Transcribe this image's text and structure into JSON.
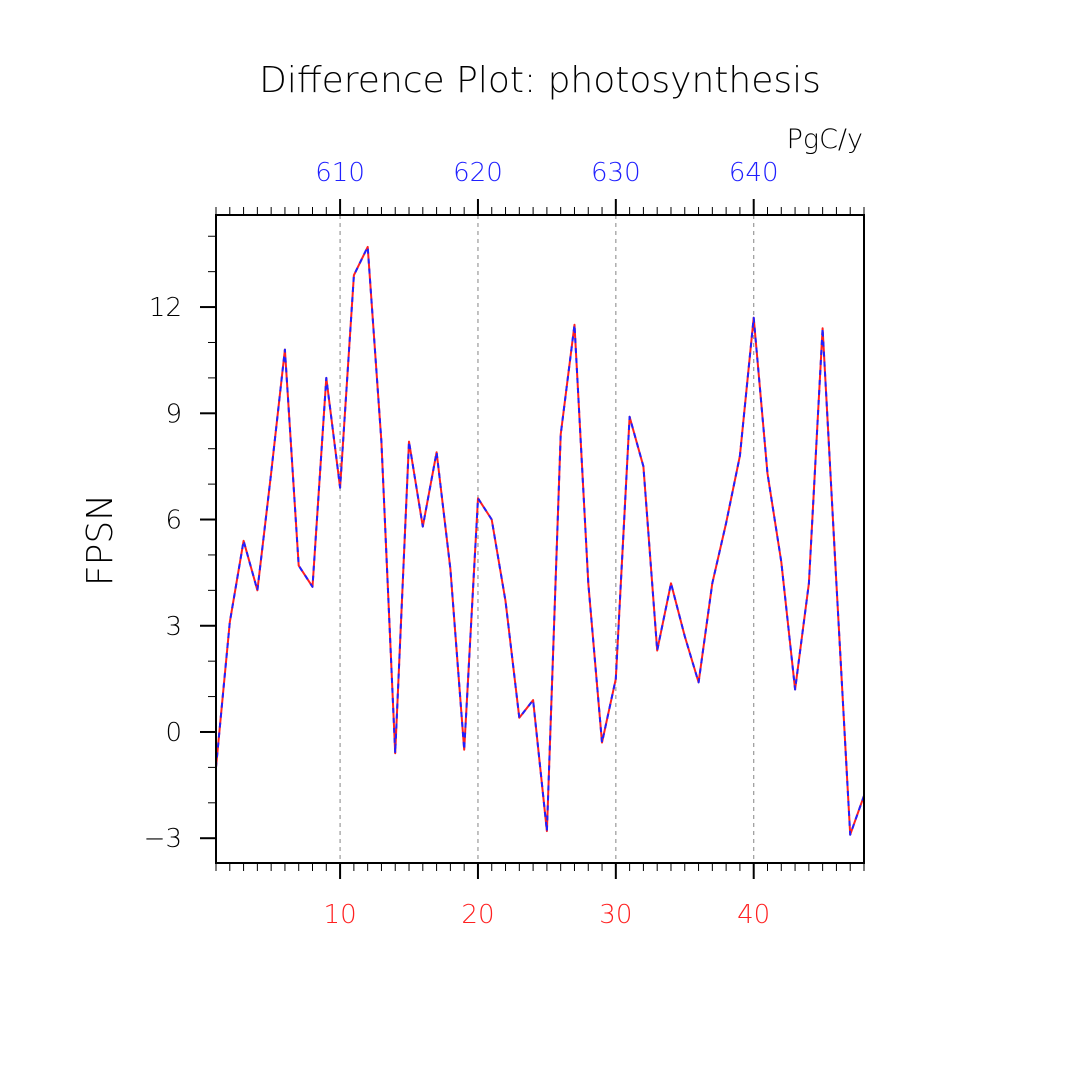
{
  "chart_data": {
    "type": "line",
    "title": "Difference Plot: photosynthesis",
    "ylabel": "FPSN",
    "units_label": "PgC/y",
    "ylim": [
      -3.7,
      14.6
    ],
    "xlim": [
      1,
      48
    ],
    "yticks": [
      -3,
      0,
      3,
      6,
      9,
      12
    ],
    "ytick_labels": [
      "−3",
      "0",
      "3",
      "6",
      "9",
      "12"
    ],
    "xticks_bottom": [
      10,
      20,
      30,
      40
    ],
    "xtick_bottom_labels": [
      "10",
      "20",
      "30",
      "40"
    ],
    "xticks_top": [
      10,
      20,
      30,
      40
    ],
    "xtick_top_labels": [
      "610",
      "620",
      "630",
      "640"
    ],
    "bottom_axis_color": "#ff2020",
    "top_axis_color": "#2020ff",
    "grid": "vertical dashed at major x ticks",
    "series": [
      {
        "color": "#ff2020",
        "style": "solid",
        "x": [
          1,
          2,
          3,
          4,
          5,
          6,
          7,
          8,
          9,
          10,
          11,
          12,
          13,
          14,
          15,
          16,
          17,
          18,
          19,
          20,
          21,
          22,
          23,
          24,
          25,
          26,
          27,
          28,
          29,
          30,
          31,
          32,
          33,
          34,
          35,
          36,
          37,
          38,
          39,
          40,
          41,
          42,
          43,
          44,
          45,
          46,
          47,
          48
        ],
        "values": [
          -1.0,
          3.1,
          5.4,
          4.0,
          7.3,
          10.8,
          4.7,
          4.1,
          10.0,
          6.9,
          12.9,
          13.7,
          8.2,
          -0.6,
          8.2,
          5.8,
          7.9,
          4.6,
          -0.5,
          6.6,
          6.0,
          3.7,
          0.4,
          0.9,
          -2.8,
          8.4,
          11.5,
          4.2,
          -0.3,
          1.5,
          8.9,
          7.5,
          2.3,
          4.2,
          2.7,
          1.4,
          4.2,
          5.9,
          7.8,
          11.7,
          7.3,
          4.8,
          1.2,
          4.2,
          11.4,
          4.2,
          -2.9,
          -1.8
        ]
      },
      {
        "color": "#2020ff",
        "style": "dashed",
        "x": [
          1,
          2,
          3,
          4,
          5,
          6,
          7,
          8,
          9,
          10,
          11,
          12,
          13,
          14,
          15,
          16,
          17,
          18,
          19,
          20,
          21,
          22,
          23,
          24,
          25,
          26,
          27,
          28,
          29,
          30,
          31,
          32,
          33,
          34,
          35,
          36,
          37,
          38,
          39,
          40,
          41,
          42,
          43,
          44,
          45,
          46,
          47,
          48
        ],
        "values": [
          -1.0,
          3.1,
          5.4,
          4.0,
          7.3,
          10.8,
          4.7,
          4.1,
          10.0,
          6.9,
          12.9,
          13.7,
          8.2,
          -0.6,
          8.2,
          5.8,
          7.9,
          4.6,
          -0.5,
          6.6,
          6.0,
          3.7,
          0.4,
          0.9,
          -2.8,
          8.4,
          11.5,
          4.2,
          -0.3,
          1.5,
          8.9,
          7.5,
          2.3,
          4.2,
          2.7,
          1.4,
          4.2,
          5.9,
          7.8,
          11.7,
          7.3,
          4.8,
          1.2,
          4.2,
          11.4,
          4.2,
          -2.9,
          -1.8
        ]
      }
    ]
  }
}
